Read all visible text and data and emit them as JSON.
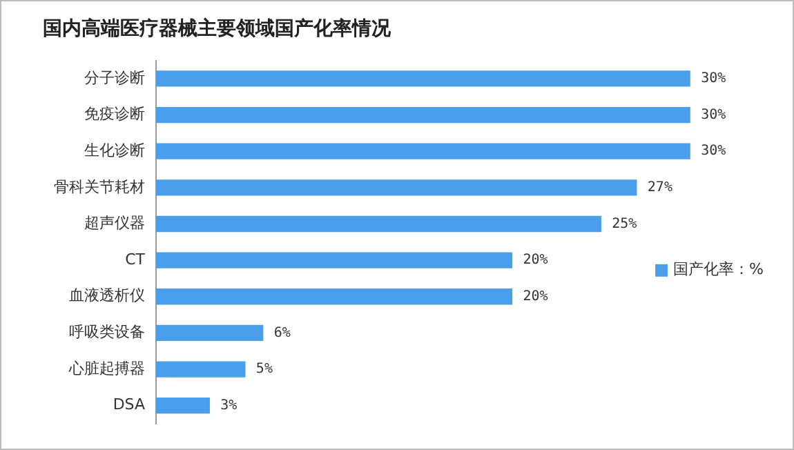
{
  "chart_data": {
    "type": "bar",
    "orientation": "horizontal",
    "title": "国内高端医疗器械主要领域国产化率情况",
    "categories": [
      "分子诊断",
      "免疫诊断",
      "生化诊断",
      "骨科关节耗材",
      "超声仪器",
      "CT",
      "血液透析仪",
      "呼吸类设备",
      "心脏起搏器",
      "DSA"
    ],
    "series": [
      {
        "name": "国产化率：%",
        "color": "#4a9eea",
        "values": [
          30,
          30,
          30,
          27,
          25,
          20,
          20,
          6,
          5,
          3
        ],
        "value_labels": [
          "30%",
          "30%",
          "30%",
          "27%",
          "25%",
          "20%",
          "20%",
          "6%",
          "5%",
          "3%"
        ]
      }
    ],
    "tick_labels": "y",
    "legend": "right"
  }
}
